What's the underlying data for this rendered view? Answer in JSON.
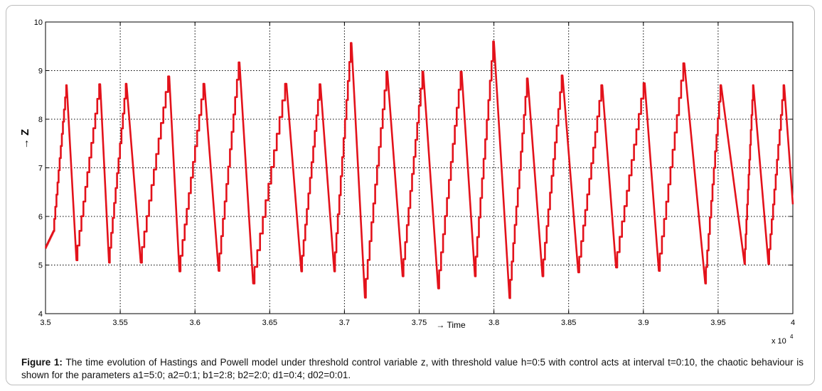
{
  "chart_data": {
    "type": "line",
    "ylabel": "Z",
    "ylabel_arrow": "→",
    "xlabel": "Time",
    "xlabel_arrow": "→",
    "x_multiplier": "x 10",
    "x_multiplier_exp": "4",
    "xlim": [
      3.5,
      4.0
    ],
    "ylim": [
      4,
      10
    ],
    "x_ticks": [
      "3.5",
      "3.55",
      "3.6",
      "3.65",
      "3.7",
      "3.75",
      "3.8",
      "3.85",
      "3.9",
      "3.95",
      "4"
    ],
    "y_ticks": [
      "4",
      "5",
      "6",
      "7",
      "8",
      "9",
      "10"
    ],
    "grid": true,
    "grid_style": "dotted",
    "line_color": "#e3121b",
    "series": [
      {
        "name": "",
        "x": [
          3.5,
          3.5055,
          3.5142,
          3.5207,
          3.5366,
          3.5425,
          3.5542,
          3.5637,
          3.5828,
          3.5896,
          3.6063,
          3.6158,
          3.6298,
          3.6389,
          3.6612,
          3.6711,
          3.6839,
          3.6932,
          3.7047,
          3.7137,
          3.7287,
          3.7389,
          3.7527,
          3.7627,
          3.7784,
          3.7873,
          3.8,
          3.8104,
          3.8226,
          3.8325,
          3.8459,
          3.8564,
          3.8725,
          3.8817,
          3.9009,
          3.9103,
          3.9274,
          3.9414,
          3.952,
          3.9677,
          3.9736,
          3.9837,
          3.9942,
          4.0
        ],
        "y": [
          5.35,
          5.7,
          8.7,
          5.1,
          8.72,
          5.05,
          8.73,
          5.05,
          8.88,
          4.87,
          8.73,
          4.88,
          9.17,
          4.62,
          8.73,
          4.87,
          8.72,
          4.87,
          9.57,
          4.33,
          8.98,
          4.77,
          8.98,
          4.52,
          8.98,
          4.77,
          9.6,
          4.32,
          8.84,
          4.77,
          8.9,
          4.85,
          8.7,
          4.95,
          8.74,
          4.88,
          9.15,
          4.62,
          8.7,
          5.02,
          8.7,
          5.02,
          8.7,
          6.25
        ]
      }
    ]
  },
  "caption": {
    "label": "Figure 1:",
    "text": " The time evolution of Hastings and Powell model under threshold control variable z, with threshold value h=0:5 with control acts at interval t=0:10, the chaotic behaviour is shown for the parameters a1=5:0; a2=0:1; b1=2:8; b2=2:0; d1=0:4; d02=0:01."
  }
}
